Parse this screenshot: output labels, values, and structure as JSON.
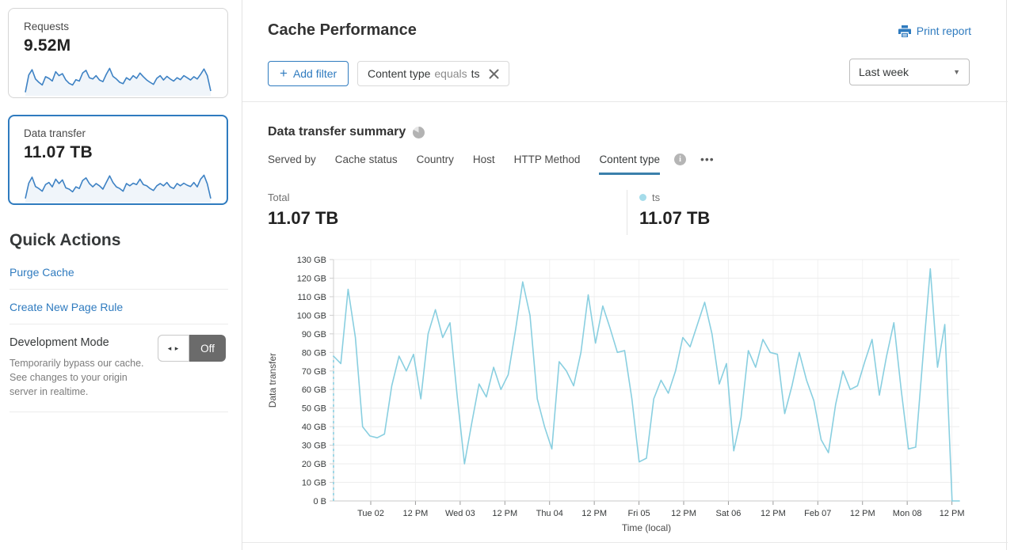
{
  "header": {
    "title": "Cache Performance",
    "print_report_label": "Print report"
  },
  "filters": {
    "plus_icon": "+",
    "add_filter_label": "Add filter",
    "chip": {
      "field": "Content type",
      "operator": "equals",
      "value": "ts"
    },
    "time_range_value": "Last week",
    "caret_icon": "▼"
  },
  "sidebar": {
    "cards": [
      {
        "label": "Requests",
        "value": "9.52M"
      },
      {
        "label": "Data transfer",
        "value": "11.07 TB"
      }
    ],
    "sparklines": {
      "requests": [
        8,
        60,
        76,
        48,
        38,
        30,
        55,
        50,
        42,
        70,
        58,
        64,
        45,
        35,
        30,
        46,
        42,
        66,
        74,
        52,
        48,
        58,
        45,
        40,
        62,
        80,
        56,
        48,
        38,
        34,
        52,
        45,
        58,
        50,
        66,
        55,
        45,
        38,
        32,
        50,
        58,
        45,
        56,
        48,
        42,
        52,
        46,
        58,
        52,
        45,
        55,
        48,
        62,
        78,
        58,
        12
      ],
      "data_transfer": [
        10,
        56,
        74,
        46,
        40,
        32,
        52,
        58,
        45,
        68,
        55,
        66,
        42,
        38,
        30,
        45,
        40,
        64,
        72,
        55,
        45,
        55,
        48,
        38,
        58,
        78,
        58,
        45,
        40,
        32,
        55,
        48,
        56,
        52,
        68,
        52,
        48,
        40,
        34,
        48,
        55,
        48,
        58,
        45,
        40,
        55,
        48,
        56,
        50,
        46,
        58,
        45,
        68,
        80,
        54,
        10
      ]
    },
    "quick_actions": {
      "title": "Quick Actions",
      "purge_cache_label": "Purge Cache",
      "create_page_rule_label": "Create New Page Rule",
      "development_mode": {
        "title": "Development Mode",
        "description": "Temporarily bypass our cache. See changes to your origin server in realtime.",
        "toggle_arrows": "◂ ▸",
        "state": "Off"
      }
    }
  },
  "summary": {
    "title": "Data transfer summary",
    "tabs": [
      "Served by",
      "Cache status",
      "Country",
      "Host",
      "HTTP Method",
      "Content type"
    ],
    "active_tab": "Content type",
    "info_icon": "i",
    "more_icon": "•••",
    "total_label": "Total",
    "total_value": "11.07 TB",
    "series_label": "ts",
    "series_value": "11.07 TB"
  },
  "chart_data": {
    "type": "line",
    "title": "Data transfer summary",
    "ylabel": "Data transfer",
    "xlabel": "Time (local)",
    "y_ticks": [
      "130 GB",
      "120 GB",
      "110 GB",
      "100 GB",
      "90 GB",
      "80 GB",
      "70 GB",
      "60 GB",
      "50 GB",
      "40 GB",
      "30 GB",
      "20 GB",
      "10 GB",
      "0 B"
    ],
    "y_max_gb": 130,
    "x_ticks": [
      "Tue 02",
      "12 PM",
      "Wed 03",
      "12 PM",
      "Thu 04",
      "12 PM",
      "Fri 05",
      "12 PM",
      "Sat 06",
      "12 PM",
      "Feb 07",
      "12 PM",
      "Mon 08",
      "12 PM"
    ],
    "grid": true,
    "leading_dashed_from_zero": true,
    "series": [
      {
        "name": "ts",
        "color": "#89cfe0",
        "values_gb": [
          78,
          74,
          114,
          88,
          40,
          35,
          34,
          36,
          62,
          78,
          70,
          79,
          55,
          90,
          103,
          88,
          96,
          56,
          20,
          42,
          63,
          56,
          72,
          60,
          68,
          92,
          118,
          100,
          55,
          40,
          28,
          75,
          70,
          62,
          80,
          111,
          85,
          105,
          93,
          80,
          81,
          55,
          21,
          23,
          55,
          65,
          58,
          70,
          88,
          83,
          95,
          107,
          90,
          63,
          74,
          27,
          45,
          81,
          72,
          87,
          80,
          79,
          47,
          62,
          80,
          65,
          54,
          33,
          26,
          52,
          70,
          60,
          62,
          75,
          87,
          57,
          78,
          96,
          60,
          28,
          29,
          78,
          125,
          72,
          95,
          0,
          0
        ]
      }
    ]
  },
  "colors": {
    "accent_blue": "#2f7bbf",
    "sparkline_blue": "#3e82c4",
    "series_line": "#89cfe0",
    "legend_dot": "#a5dcea",
    "tab_underline": "#3b80ab",
    "toggle_off_bg": "#6b6b6b"
  }
}
